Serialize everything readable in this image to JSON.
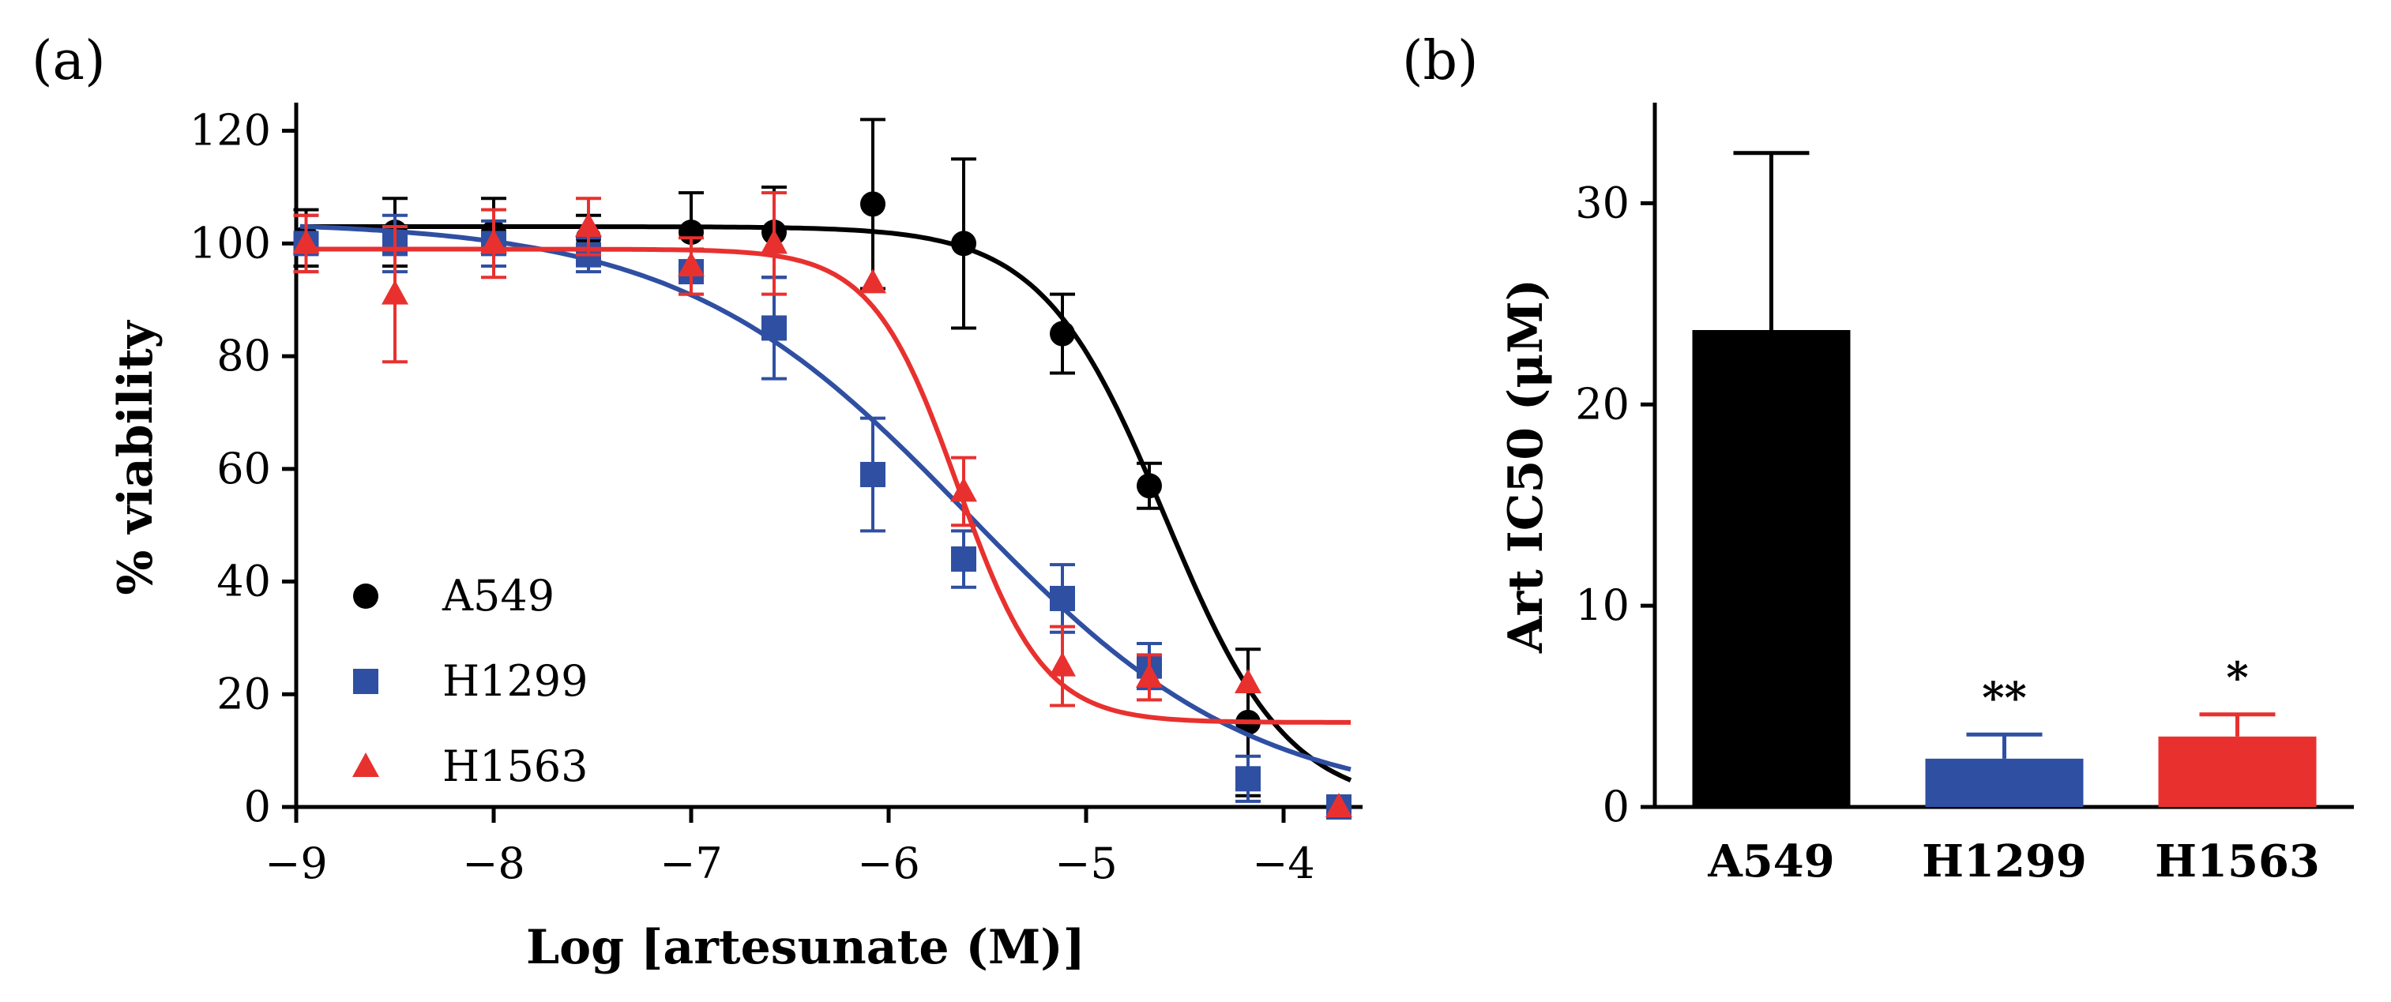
{
  "panel_a": {
    "label": "(a)",
    "chart_data": {
      "type": "scatter",
      "xlabel": "Log [artesunate (M)]",
      "ylabel": "% viability",
      "xlim": [
        -9.0,
        -3.6
      ],
      "ylim": [
        0,
        125
      ],
      "x_ticks": [
        -9,
        -8,
        -7,
        -6,
        -5,
        -4
      ],
      "x_tick_labels": [
        "−9",
        "−8",
        "−7",
        "−6",
        "−5",
        "−4"
      ],
      "y_ticks": [
        0,
        20,
        40,
        60,
        80,
        100,
        120
      ],
      "y_tick_labels": [
        "0",
        "20",
        "40",
        "60",
        "80",
        "100",
        "120"
      ],
      "legend_position": "bottom-left",
      "series": [
        {
          "name": "A549",
          "color": "#000000",
          "marker": "circle",
          "x": [
            -8.95,
            -8.5,
            -8.0,
            -7.52,
            -7.0,
            -6.58,
            -6.08,
            -5.62,
            -5.12,
            -4.68,
            -4.18,
            -3.72
          ],
          "y": [
            101,
            102,
            102,
            101,
            102,
            102,
            107,
            100,
            84,
            57,
            15,
            0
          ],
          "err": [
            5,
            6,
            6,
            4,
            7,
            8,
            15,
            15,
            7,
            4,
            13,
            0
          ],
          "fit": {
            "top": 103,
            "bottom": 0,
            "logIC50": -4.6,
            "hill": 1.4
          }
        },
        {
          "name": "H1299",
          "color": "#2f4fa2",
          "marker": "square",
          "x": [
            -8.95,
            -8.5,
            -8.0,
            -7.52,
            -7.0,
            -6.58,
            -6.08,
            -5.62,
            -5.12,
            -4.68,
            -4.18,
            -3.72
          ],
          "y": [
            100,
            100,
            100,
            98,
            95,
            85,
            59,
            44,
            37,
            25,
            5,
            0
          ],
          "err": [
            5,
            5,
            4,
            3,
            4,
            9,
            10,
            5,
            6,
            4,
            4,
            0
          ],
          "fit": {
            "top": 104,
            "bottom": 0,
            "logIC50": -5.6,
            "hill": 0.6
          }
        },
        {
          "name": "H1563",
          "color": "#e8312f",
          "marker": "triangle",
          "x": [
            -8.95,
            -8.5,
            -8.0,
            -7.52,
            -7.0,
            -6.58,
            -6.08,
            -5.62,
            -5.12,
            -4.68,
            -4.18,
            -3.72
          ],
          "y": [
            100,
            91,
            100,
            103,
            96,
            100,
            93,
            56,
            25,
            23,
            22,
            0
          ],
          "err": [
            5,
            12,
            6,
            5,
            5,
            9,
            0,
            6,
            7,
            4,
            0,
            0
          ],
          "fit": {
            "top": 99,
            "bottom": 15,
            "logIC50": -5.65,
            "hill": 2.0
          }
        }
      ]
    }
  },
  "panel_b": {
    "label": "(b)",
    "chart_data": {
      "type": "bar",
      "ylabel": "Art IC50 (μM)",
      "ylim": [
        0,
        35
      ],
      "y_ticks": [
        0,
        10,
        20,
        30
      ],
      "y_tick_labels": [
        "0",
        "10",
        "20",
        "30"
      ],
      "categories": [
        "A549",
        "H1299",
        "H1563"
      ],
      "values": [
        23.7,
        2.4,
        3.5
      ],
      "errors": [
        8.8,
        1.2,
        1.1
      ],
      "colors": [
        "#000000",
        "#2f4fa2",
        "#e8312f"
      ],
      "significance": [
        "",
        "**",
        "*"
      ]
    }
  }
}
